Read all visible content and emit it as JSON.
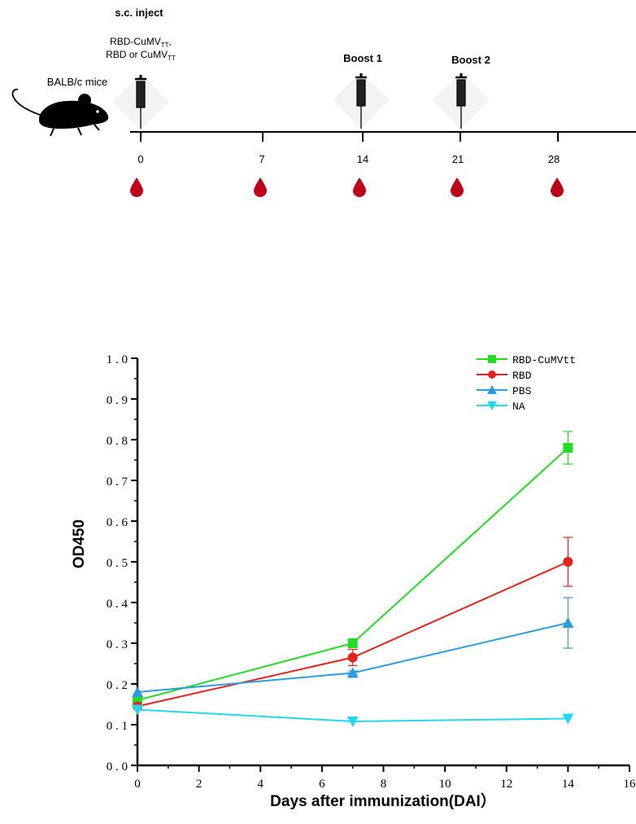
{
  "timeline": {
    "injection_label": "s.c. inject",
    "injection_materials": [
      {
        "base": "RBD-CuMV",
        "sub": "TT",
        "suffix": ","
      },
      {
        "base": "RBD or CuMV",
        "sub": "TT",
        "suffix": ""
      }
    ],
    "animal_label": "BALB/c mice",
    "boost1_label": "Boost 1",
    "boost2_label": "Boost 2",
    "days": [
      "0",
      "7",
      "14",
      "21",
      "28"
    ],
    "blood_color": "#c0001a"
  },
  "chart_data": {
    "type": "line",
    "title": "",
    "xlabel": "Days after immunization(DAI）",
    "ylabel": "OD450",
    "xlim": [
      0,
      16
    ],
    "ylim": [
      0,
      1.0
    ],
    "xticks": [
      0,
      2,
      4,
      6,
      8,
      10,
      12,
      14,
      16
    ],
    "yticks": [
      0.0,
      0.1,
      0.2,
      0.3,
      0.4,
      0.5,
      0.6,
      0.7,
      0.8,
      0.9,
      1.0
    ],
    "x": [
      0,
      7,
      14
    ],
    "grid": false,
    "legend_position": "top-right",
    "series": [
      {
        "name": "RBD-CuMVtt",
        "values": [
          0.16,
          0.3,
          0.78
        ],
        "errors": [
          0.0,
          0.005,
          0.04
        ],
        "color": "#22dd22",
        "marker": "square"
      },
      {
        "name": "RBD",
        "values": [
          0.145,
          0.265,
          0.5
        ],
        "errors": [
          0.0,
          0.02,
          0.06
        ],
        "color": "#e8201a",
        "marker": "circle"
      },
      {
        "name": "PBS",
        "values": [
          0.18,
          0.227,
          0.35
        ],
        "errors": [
          0.0,
          0.005,
          0.062
        ],
        "color": "#2a9de0",
        "marker": "triangle-up"
      },
      {
        "name": "NA",
        "values": [
          0.137,
          0.108,
          0.115
        ],
        "errors": [
          0.0,
          0.0,
          0.0
        ],
        "color": "#22d8ee",
        "marker": "triangle-down"
      }
    ]
  }
}
